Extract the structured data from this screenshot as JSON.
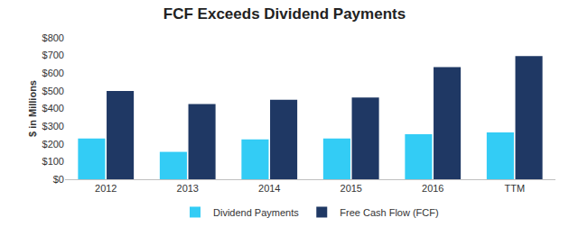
{
  "chart_data": {
    "type": "bar",
    "title": "FCF Exceeds Dividend Payments",
    "y_label": "$ in Millions",
    "categories": [
      "2012",
      "2013",
      "2014",
      "2015",
      "2016",
      "TTM"
    ],
    "series": [
      {
        "name": "Dividend Payments",
        "color": "#33ccf5",
        "values": [
          230,
          155,
          225,
          230,
          255,
          265
        ]
      },
      {
        "name": "Free Cash Flow (FCF)",
        "color": "#1f3864",
        "values": [
          500,
          425,
          450,
          462,
          635,
          697
        ]
      }
    ],
    "ylim": [
      0,
      800
    ],
    "yticks": [
      {
        "value": 0,
        "label": "$0"
      },
      {
        "value": 100,
        "label": "$100"
      },
      {
        "value": 200,
        "label": "$200"
      },
      {
        "value": 300,
        "label": "$300"
      },
      {
        "value": 400,
        "label": "$400"
      },
      {
        "value": 500,
        "label": "$500"
      },
      {
        "value": 600,
        "label": "$600"
      },
      {
        "value": 700,
        "label": "$700"
      },
      {
        "value": 800,
        "label": "$800"
      }
    ],
    "grid": false,
    "legend": "bottom"
  }
}
